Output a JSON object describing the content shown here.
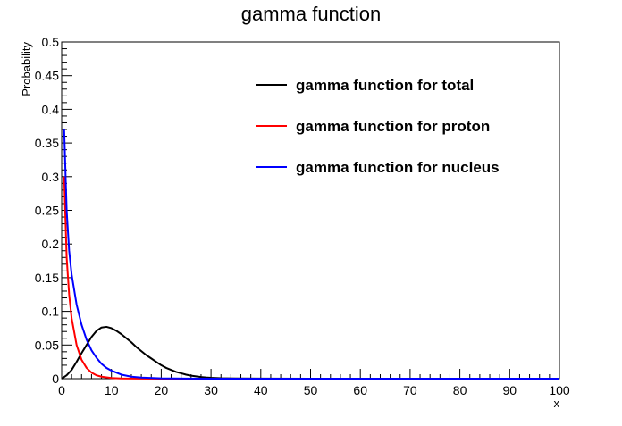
{
  "chart_data": {
    "type": "line",
    "title": "gamma function",
    "xlabel": "x",
    "ylabel": "Probability",
    "xlim": [
      0,
      100
    ],
    "ylim": [
      0,
      0.5
    ],
    "x_ticks": [
      "0",
      "10",
      "20",
      "30",
      "40",
      "50",
      "60",
      "70",
      "80",
      "90",
      "100"
    ],
    "y_ticks": [
      "0",
      "0.05",
      "0.1",
      "0.15",
      "0.2",
      "0.25",
      "0.3",
      "0.35",
      "0.4",
      "0.45",
      "0.5"
    ],
    "grid": false,
    "legend_position": "top-right",
    "series": [
      {
        "name": "gamma function for total",
        "color": "#000000",
        "x": [
          0,
          1,
          2,
          3,
          4,
          5,
          6,
          7,
          8,
          9,
          10,
          11,
          12,
          13,
          14,
          15,
          16,
          17,
          18,
          19,
          20,
          21,
          22,
          23,
          24,
          25,
          26,
          27,
          28,
          29,
          30,
          32,
          35,
          40,
          50,
          60,
          70,
          80,
          90,
          100
        ],
        "y": [
          0,
          0.005,
          0.013,
          0.025,
          0.038,
          0.05,
          0.062,
          0.071,
          0.076,
          0.077,
          0.075,
          0.071,
          0.066,
          0.06,
          0.054,
          0.047,
          0.041,
          0.035,
          0.03,
          0.025,
          0.02,
          0.016,
          0.013,
          0.01,
          0.008,
          0.006,
          0.0045,
          0.0035,
          0.0025,
          0.0018,
          0.0013,
          0.0007,
          0.0003,
          0.0001,
          0,
          0,
          0,
          0,
          0,
          0
        ]
      },
      {
        "name": "gamma function for proton",
        "color": "#ff0000",
        "x": [
          0.5,
          1,
          1.5,
          2,
          3,
          4,
          5,
          6,
          7,
          8,
          10,
          12,
          15,
          20,
          30,
          50,
          100
        ],
        "y": [
          0.3,
          0.18,
          0.125,
          0.09,
          0.05,
          0.028,
          0.016,
          0.009,
          0.005,
          0.003,
          0.001,
          0.0004,
          0.0001,
          0,
          0,
          0,
          0
        ],
        "points": false
      },
      {
        "name": "gamma function for nucleus",
        "color": "#0000ff",
        "x": [
          0.5,
          1,
          1.5,
          2,
          3,
          4,
          5,
          6,
          7,
          8,
          9,
          10,
          12,
          14,
          16,
          20,
          25,
          30,
          40,
          50,
          60,
          70,
          80,
          90,
          100
        ],
        "y": [
          0.37,
          0.25,
          0.19,
          0.155,
          0.11,
          0.08,
          0.058,
          0.042,
          0.031,
          0.022,
          0.016,
          0.012,
          0.006,
          0.003,
          0.0016,
          0.0005,
          0.0001,
          0,
          0,
          0,
          0,
          0,
          0,
          0,
          0
        ]
      }
    ]
  }
}
